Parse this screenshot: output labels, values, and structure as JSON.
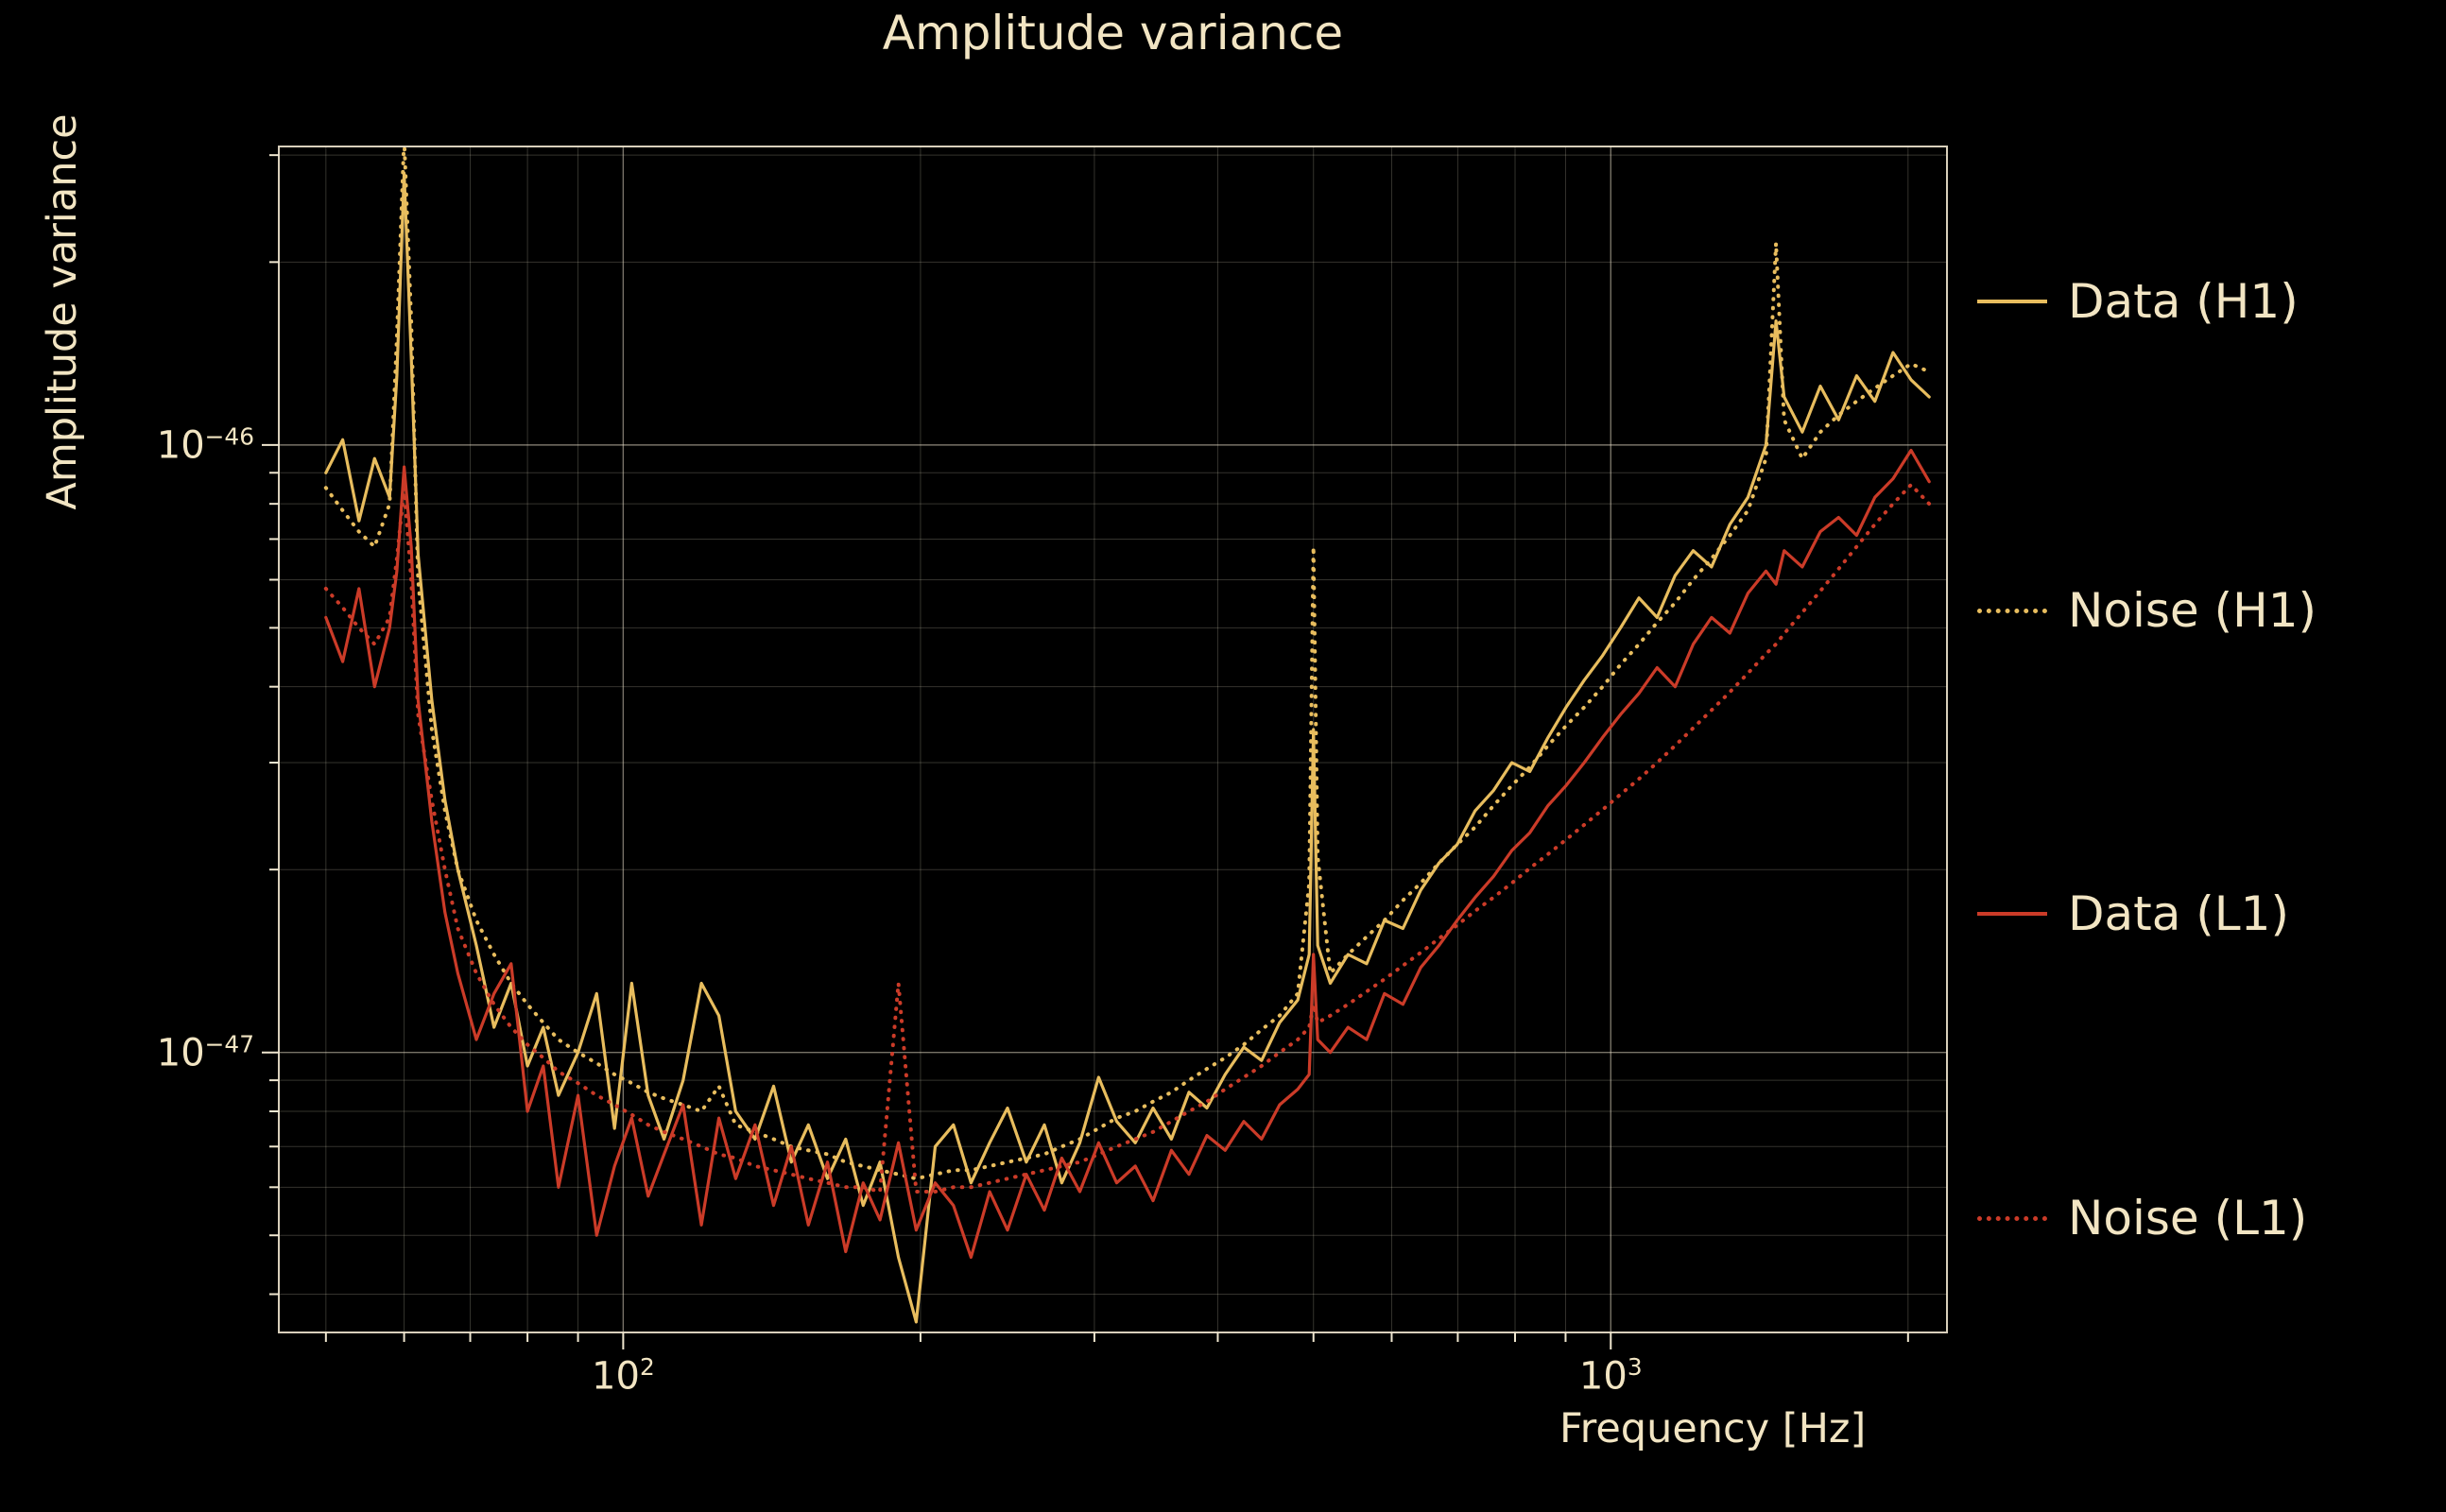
{
  "title": "Amplitude variance",
  "x_axis": {
    "label": "Frequency [Hz]",
    "ticks": [
      {
        "base": "10",
        "exp": "2",
        "value": 100
      },
      {
        "base": "10",
        "exp": "3",
        "value": 1000
      }
    ]
  },
  "y_axis": {
    "label": "Amplitude variance",
    "ticks": [
      {
        "base": "10",
        "exp": "−46",
        "value": 1e-46
      },
      {
        "base": "10",
        "exp": "−47",
        "value": 1e-47
      }
    ]
  },
  "colors": {
    "h1": "#e8bd5e",
    "l1": "#cb3b28",
    "text": "#f2e5c3",
    "grid": "#efe6cf",
    "background": "#000000"
  },
  "legend": {
    "position": "right-outside",
    "items": [
      {
        "label": "Data (H1)",
        "series": 0
      },
      {
        "label": "Noise (H1)",
        "series": 1
      },
      {
        "label": "Data (L1)",
        "series": 2
      },
      {
        "label": "Noise (L1)",
        "series": 3
      }
    ]
  },
  "chart_data": {
    "type": "line",
    "title": "Amplitude variance",
    "xlabel": "Frequency [Hz]",
    "ylabel": "Amplitude variance",
    "x_scale": "log",
    "y_scale": "log",
    "grid": true,
    "xlim": [
      44.8,
      2190
    ],
    "ylim": [
      3.46e-48,
      3.1e-46
    ],
    "x": [
      50,
      52,
      54,
      56,
      58,
      59,
      60,
      61,
      62,
      64,
      66,
      68,
      71,
      74,
      77,
      80,
      83,
      86,
      90,
      94,
      98,
      102,
      106,
      110,
      115,
      120,
      125,
      130,
      136,
      142,
      148,
      154,
      161,
      168,
      175,
      182,
      190,
      198,
      207,
      216,
      225,
      235,
      245,
      256,
      267,
      278,
      290,
      303,
      316,
      330,
      344,
      359,
      374,
      390,
      407,
      425,
      443,
      462,
      482,
      495,
      500,
      505,
      520,
      542,
      566,
      590,
      616,
      642,
      670,
      699,
      729,
      761,
      794,
      828,
      864,
      901,
      940,
      981,
      1023,
      1068,
      1114,
      1162,
      1212,
      1265,
      1320,
      1377,
      1436,
      1470,
      1498,
      1563,
      1630,
      1701,
      1774,
      1851,
      1931,
      2014,
      2101
    ],
    "series": [
      {
        "name": "Data (H1)",
        "color": "#e8bd5e",
        "style": "solid",
        "values": [
          9e-47,
          1.02e-46,
          7.5e-47,
          9.5e-47,
          8.2e-47,
          1.3e-46,
          2.8e-46,
          1.4e-46,
          6.6e-47,
          3.8e-47,
          2.6e-47,
          2e-47,
          1.5e-47,
          1.1e-47,
          1.3e-47,
          9.5e-48,
          1.1e-47,
          8.5e-48,
          1e-47,
          1.25e-47,
          7.5e-48,
          1.3e-47,
          8.5e-48,
          7.2e-48,
          9e-48,
          1.3e-47,
          1.15e-47,
          8e-48,
          7.2e-48,
          8.8e-48,
          6.6e-48,
          7.6e-48,
          6.2e-48,
          7.2e-48,
          5.6e-48,
          6.6e-48,
          4.6e-48,
          3.6e-48,
          7e-48,
          7.6e-48,
          6.1e-48,
          7.1e-48,
          8.1e-48,
          6.6e-48,
          7.6e-48,
          6.1e-48,
          7.1e-48,
          9.1e-48,
          7.7e-48,
          7.1e-48,
          8.1e-48,
          7.2e-48,
          8.6e-48,
          8.1e-48,
          9.2e-48,
          1.02e-47,
          9.7e-48,
          1.12e-47,
          1.22e-47,
          1.45e-47,
          3.4e-47,
          1.5e-47,
          1.3e-47,
          1.45e-47,
          1.4e-47,
          1.65e-47,
          1.6e-47,
          1.85e-47,
          2.05e-47,
          2.2e-47,
          2.5e-47,
          2.7e-47,
          3e-47,
          2.9e-47,
          3.3e-47,
          3.7e-47,
          4.1e-47,
          4.5e-47,
          5e-47,
          5.6e-47,
          5.2e-47,
          6.1e-47,
          6.7e-47,
          6.3e-47,
          7.4e-47,
          8.2e-47,
          1e-46,
          1.6e-46,
          1.2e-46,
          1.05e-46,
          1.25e-46,
          1.1e-46,
          1.3e-46,
          1.18e-46,
          1.42e-46,
          1.28e-46,
          1.2e-46
        ]
      },
      {
        "name": "Noise (H1)",
        "color": "#e8bd5e",
        "style": "dotted",
        "values": [
          8.5e-47,
          7.8e-47,
          7.2e-47,
          6.8e-47,
          8e-47,
          1.5e-46,
          3.2e-46,
          1.6e-46,
          6e-47,
          3.4e-47,
          2.5e-47,
          2e-47,
          1.65e-47,
          1.45e-47,
          1.3e-47,
          1.2e-47,
          1.12e-47,
          1.05e-47,
          1e-47,
          9.6e-48,
          9.2e-48,
          8.9e-48,
          8.6e-48,
          8.4e-48,
          8.2e-48,
          8e-48,
          8.8e-48,
          7.6e-48,
          7.4e-48,
          7.2e-48,
          7e-48,
          6.9e-48,
          6.8e-48,
          6.6e-48,
          6.5e-48,
          6.4e-48,
          6.3e-48,
          6.2e-48,
          6.3e-48,
          6.4e-48,
          6.4e-48,
          6.5e-48,
          6.6e-48,
          6.7e-48,
          6.8e-48,
          7e-48,
          7.2e-48,
          7.5e-48,
          7.8e-48,
          8e-48,
          8.3e-48,
          8.6e-48,
          9e-48,
          9.4e-48,
          9.8e-48,
          1.03e-47,
          1.09e-47,
          1.15e-47,
          1.25e-47,
          1.9e-47,
          6.8e-47,
          2.1e-47,
          1.35e-47,
          1.45e-47,
          1.55e-47,
          1.65e-47,
          1.78e-47,
          1.9e-47,
          2.05e-47,
          2.2e-47,
          2.35e-47,
          2.55e-47,
          2.75e-47,
          2.95e-47,
          3.2e-47,
          3.45e-47,
          3.7e-47,
          4e-47,
          4.35e-47,
          4.7e-47,
          5.1e-47,
          5.5e-47,
          6e-47,
          6.5e-47,
          7.1e-47,
          7.8e-47,
          9.5e-47,
          2.15e-46,
          1.1e-46,
          9.5e-47,
          1.05e-46,
          1.12e-46,
          1.18e-46,
          1.24e-46,
          1.3e-46,
          1.36e-46,
          1.32e-46
        ]
      },
      {
        "name": "Data (L1)",
        "color": "#cb3b28",
        "style": "solid",
        "values": [
          5.2e-47,
          4.4e-47,
          5.8e-47,
          4e-47,
          5e-47,
          6.2e-47,
          9.2e-47,
          6.8e-47,
          3.8e-47,
          2.4e-47,
          1.7e-47,
          1.35e-47,
          1.05e-47,
          1.25e-47,
          1.4e-47,
          8e-48,
          9.5e-48,
          6e-48,
          8.5e-48,
          5e-48,
          6.5e-48,
          7.8e-48,
          5.8e-48,
          6.8e-48,
          8.2e-48,
          5.2e-48,
          7.8e-48,
          6.2e-48,
          7.6e-48,
          5.6e-48,
          7e-48,
          5.2e-48,
          6.6e-48,
          4.7e-48,
          6.1e-48,
          5.3e-48,
          7.1e-48,
          5.1e-48,
          6.1e-48,
          5.6e-48,
          4.6e-48,
          5.9e-48,
          5.1e-48,
          6.3e-48,
          5.5e-48,
          6.7e-48,
          5.9e-48,
          7.1e-48,
          6.1e-48,
          6.5e-48,
          5.7e-48,
          6.9e-48,
          6.3e-48,
          7.3e-48,
          6.9e-48,
          7.7e-48,
          7.2e-48,
          8.2e-48,
          8.7e-48,
          9.2e-48,
          1.45e-47,
          1.05e-47,
          1e-47,
          1.1e-47,
          1.05e-47,
          1.25e-47,
          1.2e-47,
          1.38e-47,
          1.5e-47,
          1.65e-47,
          1.8e-47,
          1.95e-47,
          2.15e-47,
          2.3e-47,
          2.55e-47,
          2.75e-47,
          3e-47,
          3.3e-47,
          3.6e-47,
          3.9e-47,
          4.3e-47,
          4e-47,
          4.7e-47,
          5.2e-47,
          4.9e-47,
          5.7e-47,
          6.2e-47,
          5.9e-47,
          6.7e-47,
          6.3e-47,
          7.2e-47,
          7.6e-47,
          7.1e-47,
          8.2e-47,
          8.8e-47,
          9.8e-47,
          8.7e-47
        ]
      },
      {
        "name": "Noise (L1)",
        "color": "#cb3b28",
        "style": "dotted",
        "values": [
          5.8e-47,
          5.4e-47,
          5e-47,
          4.7e-47,
          5.2e-47,
          6.5e-47,
          8.5e-47,
          6e-47,
          3.6e-47,
          2.6e-47,
          2e-47,
          1.6e-47,
          1.35e-47,
          1.2e-47,
          1.1e-47,
          1.03e-47,
          9.8e-48,
          9.3e-48,
          8.9e-48,
          8.5e-48,
          8.2e-48,
          7.9e-48,
          7.6e-48,
          7.4e-48,
          7.2e-48,
          7e-48,
          6.8e-48,
          6.7e-48,
          6.5e-48,
          6.4e-48,
          6.3e-48,
          6.2e-48,
          6.1e-48,
          6e-48,
          6e-48,
          5.9e-48,
          1.3e-47,
          5.9e-48,
          5.9e-48,
          6e-48,
          6e-48,
          6.1e-48,
          6.2e-48,
          6.3e-48,
          6.4e-48,
          6.5e-48,
          6.6e-48,
          6.8e-48,
          7e-48,
          7.2e-48,
          7.4e-48,
          7.7e-48,
          8e-48,
          8.3e-48,
          8.7e-48,
          9.1e-48,
          9.5e-48,
          1e-47,
          1.05e-47,
          1.1e-47,
          1.2e-47,
          1.12e-47,
          1.15e-47,
          1.2e-47,
          1.26e-47,
          1.32e-47,
          1.39e-47,
          1.46e-47,
          1.54e-47,
          1.62e-47,
          1.71e-47,
          1.8e-47,
          1.9e-47,
          2.01e-47,
          2.12e-47,
          2.24e-47,
          2.37e-47,
          2.51e-47,
          2.66e-47,
          2.82e-47,
          3e-47,
          3.2e-47,
          3.42e-47,
          3.66e-47,
          3.92e-47,
          4.21e-47,
          4.53e-47,
          4.7e-47,
          4.89e-47,
          5.3e-47,
          5.75e-47,
          6.25e-47,
          6.8e-47,
          7.4e-47,
          8e-47,
          8.6e-47,
          8e-47
        ]
      }
    ]
  }
}
